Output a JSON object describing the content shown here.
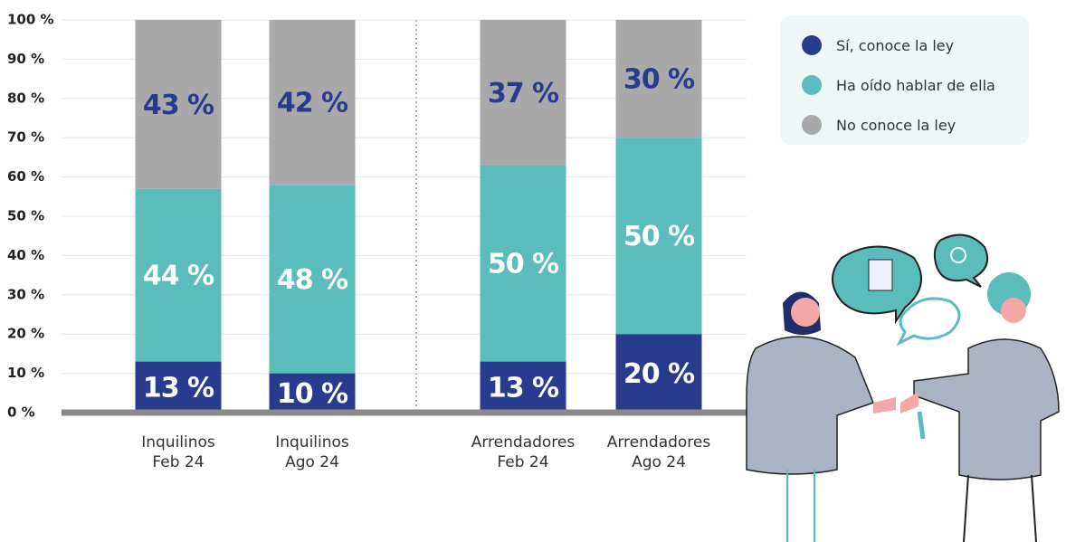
{
  "chart_data": {
    "type": "stacked_bar",
    "categories": [
      "Inquilinos\nFeb 24",
      "Inquilinos\nAgo 24",
      "Arrendadores\nFeb 24",
      "Arrendadores\nAgo 24"
    ],
    "series": [
      {
        "name": "Sí, conoce la ley",
        "color": "#293b8f",
        "label_color": "#ffffff",
        "values": [
          13,
          10,
          13,
          20
        ],
        "value_labels": [
          "13 %",
          "10 %",
          "13 %",
          "20 %"
        ]
      },
      {
        "name": "Ha oído hablar de ella",
        "color": "#5bbdbb",
        "label_color": "#ffffff",
        "values": [
          44,
          48,
          50,
          50
        ],
        "value_labels": [
          "44 %",
          "48 %",
          "50 %",
          "50 %"
        ]
      },
      {
        "name": "No conoce la ley",
        "color": "#a9a9a9",
        "label_color": "#293b8f",
        "values": [
          43,
          42,
          37,
          30
        ],
        "value_labels": [
          "43 %",
          "42 %",
          "37 %",
          "30 %"
        ]
      }
    ],
    "ylim": [
      0,
      100
    ],
    "yticks": [
      {
        "value": 0,
        "label": "0 %"
      },
      {
        "value": 10,
        "label": "10 %"
      },
      {
        "value": 20,
        "label": "20 %"
      },
      {
        "value": 30,
        "label": "30 %"
      },
      {
        "value": 40,
        "label": "40 %"
      },
      {
        "value": 50,
        "label": "50 %"
      },
      {
        "value": 60,
        "label": "60 %"
      },
      {
        "value": 70,
        "label": "70 %"
      },
      {
        "value": 80,
        "label": "80 %"
      },
      {
        "value": 90,
        "label": "90 %"
      },
      {
        "value": 100,
        "label": "100 %"
      }
    ],
    "grid": true
  }
}
